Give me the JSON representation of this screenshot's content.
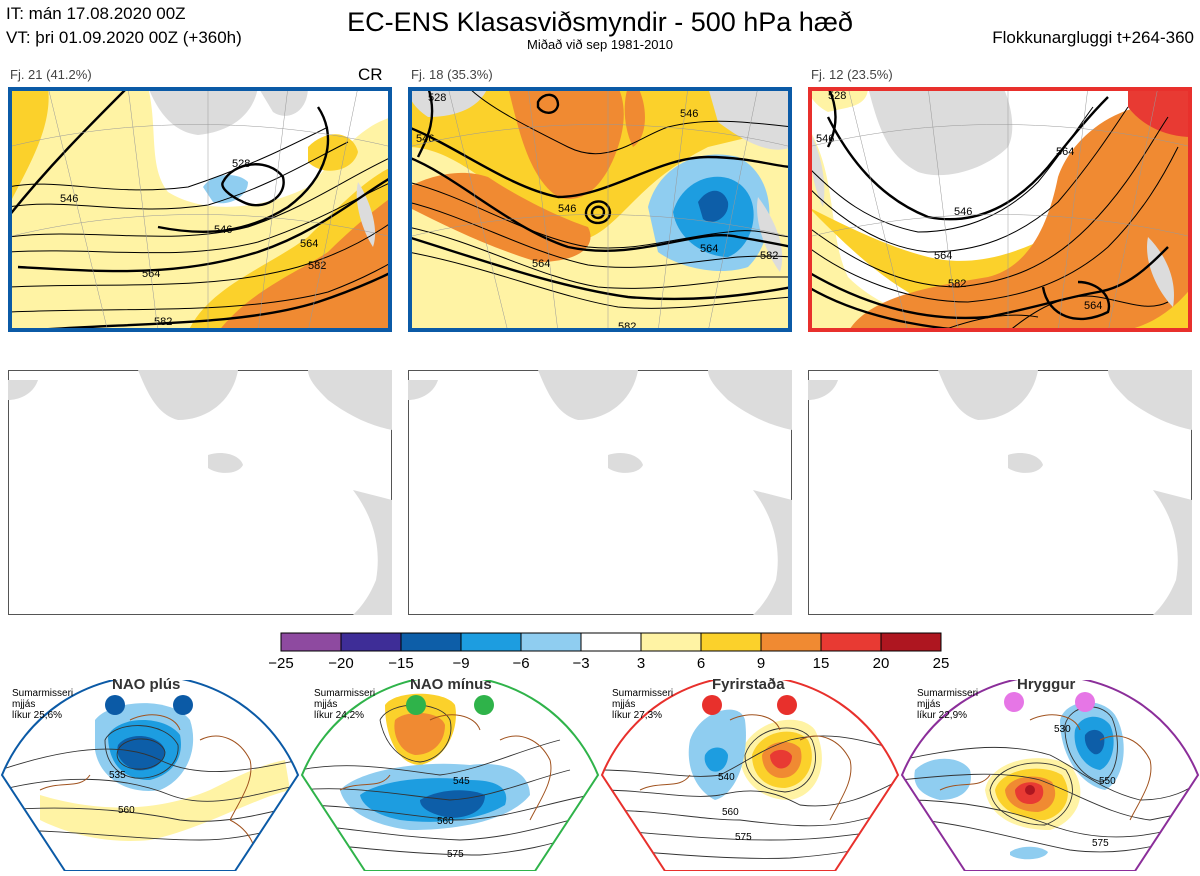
{
  "header": {
    "init_time": "IT: mán 17.08.2020 00Z",
    "valid_time": "VT: þri 01.09.2020 00Z  (+360h)",
    "title": "EC-ENS Klasasviðsmyndir - 500 hPa hæð",
    "subtitle": "Miðað við sep 1981-2010",
    "window": "Flokkunargluggi t+264-360"
  },
  "clusters": [
    {
      "label": "Fj. 21 (41.2%)",
      "tag": "CR",
      "frame_color": "#0b5aa6",
      "contour_labels": [
        "546",
        "528",
        "546",
        "564",
        "564",
        "582",
        "582"
      ]
    },
    {
      "label": "Fj. 18 (35.3%)",
      "tag": "",
      "frame_color": "#0b5aa6",
      "contour_labels": [
        "528",
        "546",
        "546",
        "546",
        "564",
        "564",
        "582",
        "582"
      ]
    },
    {
      "label": "Fj. 12 (23.5%)",
      "tag": "",
      "frame_color": "#e8302c",
      "contour_labels": [
        "528",
        "546",
        "546",
        "564",
        "564",
        "582",
        "564"
      ]
    }
  ],
  "colorbar": {
    "ticks": [
      "−25",
      "−20",
      "−15",
      "−9",
      "−6",
      "−3",
      "3",
      "6",
      "9",
      "15",
      "20",
      "25"
    ],
    "colors": [
      "#8e4aa0",
      "#3e2d97",
      "#0d5ea8",
      "#1d9de0",
      "#8fcdf0",
      "#ffffff",
      "#fff3a4",
      "#fbd12b",
      "#f08a32",
      "#e83a33",
      "#ae1620"
    ]
  },
  "regimes": [
    {
      "name": "NAO plús",
      "season": "Sumarmisseri",
      "smooth": "mjjás",
      "prob": "líkur 25,6%",
      "dot_color": "#0b5aa6",
      "frame_color": "#0b5aa6",
      "labels": [
        "535",
        "560"
      ]
    },
    {
      "name": "NAO mínus",
      "season": "Sumarmisseri",
      "smooth": "mjjás",
      "prob": "líkur 24,2%",
      "dot_color": "#2fb34a",
      "frame_color": "#2fb34a",
      "labels": [
        "545",
        "560",
        "575"
      ]
    },
    {
      "name": "Fyrirstaða",
      "season": "Sumarmisseri",
      "smooth": "mjjás",
      "prob": "líkur 27,3%",
      "dot_color": "#e8302c",
      "frame_color": "#e8302c",
      "labels": [
        "540",
        "560",
        "575"
      ]
    },
    {
      "name": "Hryggur",
      "season": "Sumarmisseri",
      "smooth": "mjjás",
      "prob": "líkur 22,9%",
      "dot_color": "#e676e6",
      "frame_color": "#8b2e9a",
      "labels": [
        "530",
        "550",
        "575"
      ]
    }
  ]
}
